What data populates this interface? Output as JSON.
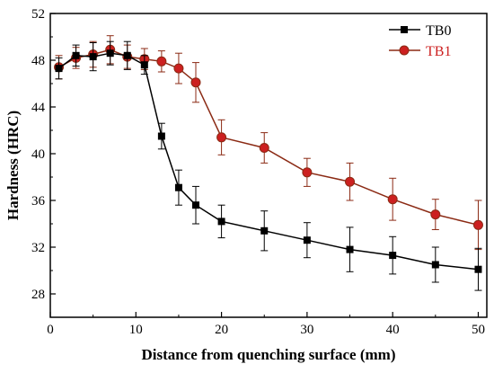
{
  "chart_data": {
    "type": "line",
    "xlabel": "Distance from quenching surface (mm)",
    "ylabel": "Hardness (HRC)",
    "xlim": [
      0,
      51
    ],
    "ylim": [
      26,
      52
    ],
    "xticks": [
      0,
      10,
      20,
      30,
      40,
      50
    ],
    "yticks": [
      28,
      32,
      36,
      40,
      44,
      48,
      52
    ],
    "grid": false,
    "legend_position": "top-right",
    "series": [
      {
        "name": "TB0",
        "color": "#000000",
        "marker": "square",
        "x": [
          1,
          3,
          5,
          7,
          9,
          11,
          13,
          15,
          17,
          20,
          25,
          30,
          35,
          40,
          45,
          50
        ],
        "y": [
          47.3,
          48.4,
          48.3,
          48.6,
          48.4,
          47.6,
          41.5,
          37.1,
          35.6,
          34.2,
          33.4,
          32.6,
          31.8,
          31.3,
          30.5,
          30.1
        ],
        "err": [
          0.9,
          0.9,
          1.2,
          1.0,
          1.2,
          0.8,
          1.1,
          1.5,
          1.6,
          1.4,
          1.7,
          1.5,
          1.9,
          1.6,
          1.5,
          1.8
        ]
      },
      {
        "name": "TB1",
        "color": "#cc2020",
        "line_color": "#8b2a14",
        "marker": "circle",
        "x": [
          1,
          3,
          5,
          7,
          9,
          11,
          13,
          15,
          17,
          20,
          25,
          30,
          35,
          40,
          45,
          50
        ],
        "y": [
          47.4,
          48.2,
          48.5,
          48.9,
          48.3,
          48.1,
          47.9,
          47.3,
          46.1,
          41.4,
          40.5,
          38.4,
          37.6,
          36.1,
          34.8,
          33.9
        ],
        "err": [
          1.0,
          0.9,
          1.1,
          1.2,
          1.0,
          0.9,
          0.9,
          1.3,
          1.7,
          1.5,
          1.3,
          1.2,
          1.6,
          1.8,
          1.3,
          2.1
        ]
      }
    ]
  }
}
